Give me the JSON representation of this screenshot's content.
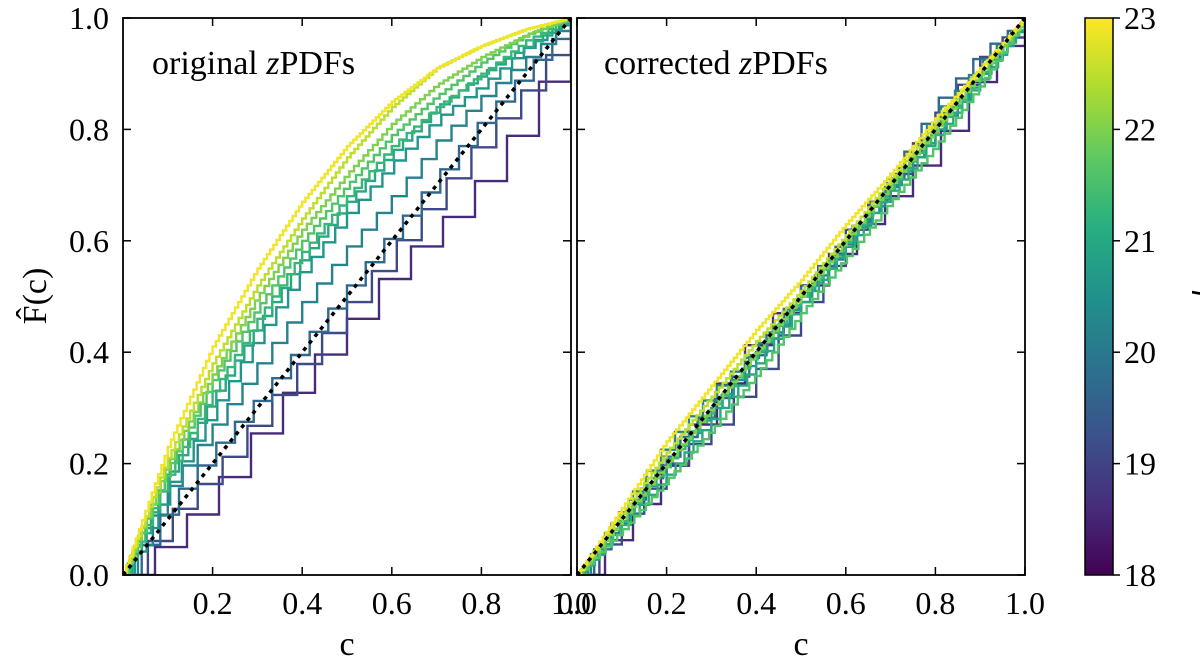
{
  "figure": {
    "ylabel": "F̂(c)",
    "xlabel": "c",
    "colorbar_label": "r"
  },
  "colors": {
    "viridis": [
      "#440154",
      "#472d7b",
      "#3b528b",
      "#2c728e",
      "#21918c",
      "#28ae80",
      "#5ec962",
      "#addc30",
      "#fde725"
    ],
    "reference_line": "#000000"
  },
  "chart_data": [
    {
      "type": "line",
      "panel": "left",
      "annotation_prefix": "original ",
      "annotation_var": "z",
      "annotation_suffix": "PDFs",
      "xlabel": "c",
      "ylabel": "F̂(c)",
      "xlim": [
        0.0,
        1.0
      ],
      "ylim": [
        0.0,
        1.0
      ],
      "xticks": [
        "0.2",
        "0.4",
        "0.6",
        "0.8",
        "1.0"
      ],
      "yticks": [
        "0.0",
        "0.2",
        "0.4",
        "0.6",
        "0.8",
        "1.0"
      ],
      "reference": {
        "name": "y = x",
        "style": "dotted",
        "x": [
          0,
          1
        ],
        "y": [
          0,
          1
        ]
      },
      "series": [
        {
          "r": 18.6,
          "steps": 14,
          "x": [
            0,
            0.1,
            0.2,
            0.3,
            0.4,
            0.5,
            0.6,
            0.7,
            0.8,
            0.9,
            1.0
          ],
          "y": [
            0,
            0.07,
            0.16,
            0.27,
            0.37,
            0.46,
            0.56,
            0.63,
            0.72,
            0.84,
            1.0
          ]
        },
        {
          "r": 19.1,
          "steps": 18,
          "x": [
            0,
            0.1,
            0.2,
            0.3,
            0.4,
            0.5,
            0.6,
            0.7,
            0.8,
            0.9,
            1.0
          ],
          "y": [
            0,
            0.11,
            0.19,
            0.29,
            0.39,
            0.49,
            0.59,
            0.69,
            0.79,
            0.88,
            1.0
          ]
        },
        {
          "r": 19.7,
          "steps": 24,
          "x": [
            0,
            0.1,
            0.2,
            0.3,
            0.4,
            0.5,
            0.6,
            0.7,
            0.8,
            0.9,
            1.0
          ],
          "y": [
            0,
            0.13,
            0.23,
            0.32,
            0.42,
            0.52,
            0.62,
            0.72,
            0.82,
            0.91,
            1.0
          ]
        },
        {
          "r": 20.2,
          "steps": 30,
          "x": [
            0,
            0.1,
            0.2,
            0.3,
            0.4,
            0.5,
            0.6,
            0.7,
            0.8,
            0.9,
            1.0
          ],
          "y": [
            0,
            0.16,
            0.27,
            0.38,
            0.49,
            0.59,
            0.68,
            0.78,
            0.86,
            0.93,
            1.0
          ]
        },
        {
          "r": 20.6,
          "steps": 38,
          "x": [
            0,
            0.1,
            0.2,
            0.3,
            0.4,
            0.5,
            0.6,
            0.7,
            0.8,
            0.9,
            1.0
          ],
          "y": [
            0,
            0.16,
            0.3,
            0.43,
            0.55,
            0.65,
            0.74,
            0.82,
            0.88,
            0.95,
            1.0
          ]
        },
        {
          "r": 21.0,
          "steps": 48,
          "x": [
            0,
            0.1,
            0.2,
            0.3,
            0.4,
            0.5,
            0.6,
            0.7,
            0.8,
            0.9,
            1.0
          ],
          "y": [
            0,
            0.18,
            0.32,
            0.45,
            0.57,
            0.67,
            0.76,
            0.84,
            0.9,
            0.95,
            1.0
          ]
        },
        {
          "r": 21.3,
          "steps": 60,
          "x": [
            0,
            0.1,
            0.2,
            0.3,
            0.4,
            0.5,
            0.6,
            0.7,
            0.8,
            0.9,
            1.0
          ],
          "y": [
            0,
            0.18,
            0.33,
            0.46,
            0.58,
            0.68,
            0.77,
            0.84,
            0.9,
            0.96,
            1.0
          ]
        },
        {
          "r": 21.6,
          "steps": 75,
          "x": [
            0,
            0.1,
            0.2,
            0.3,
            0.4,
            0.5,
            0.6,
            0.7,
            0.8,
            0.9,
            1.0
          ],
          "y": [
            0,
            0.19,
            0.35,
            0.48,
            0.6,
            0.7,
            0.79,
            0.86,
            0.92,
            0.97,
            1.0
          ]
        },
        {
          "r": 22.0,
          "steps": 95,
          "x": [
            0,
            0.1,
            0.2,
            0.3,
            0.4,
            0.5,
            0.6,
            0.7,
            0.8,
            0.9,
            1.0
          ],
          "y": [
            0,
            0.2,
            0.36,
            0.5,
            0.62,
            0.72,
            0.81,
            0.88,
            0.93,
            0.97,
            1.0
          ]
        },
        {
          "r": 22.5,
          "steps": 120,
          "x": [
            0,
            0.1,
            0.2,
            0.3,
            0.4,
            0.5,
            0.6,
            0.7,
            0.8,
            0.9,
            1.0
          ],
          "y": [
            0,
            0.21,
            0.38,
            0.52,
            0.64,
            0.75,
            0.84,
            0.91,
            0.95,
            0.98,
            1.0
          ]
        },
        {
          "r": 22.9,
          "steps": 140,
          "x": [
            0,
            0.1,
            0.2,
            0.3,
            0.4,
            0.5,
            0.6,
            0.7,
            0.8,
            0.9,
            1.0
          ],
          "y": [
            0,
            0.23,
            0.41,
            0.55,
            0.67,
            0.77,
            0.85,
            0.91,
            0.95,
            0.98,
            1.0
          ]
        }
      ]
    },
    {
      "type": "line",
      "panel": "right",
      "annotation_prefix": "corrected ",
      "annotation_var": "z",
      "annotation_suffix": "PDFs",
      "xlabel": "c",
      "xlim": [
        0.0,
        1.0
      ],
      "ylim": [
        0.0,
        1.0
      ],
      "xticks": [
        "0.0",
        "0.2",
        "0.4",
        "0.6",
        "0.8",
        "1.0"
      ],
      "reference": {
        "name": "y = x",
        "style": "dotted",
        "x": [
          0,
          1
        ],
        "y": [
          0,
          1
        ]
      },
      "series": [
        {
          "r": 18.6,
          "steps": 16,
          "x": [
            0,
            0.1,
            0.2,
            0.3,
            0.4,
            0.5,
            0.6,
            0.7,
            0.8,
            0.9,
            1.0
          ],
          "y": [
            0,
            0.1,
            0.21,
            0.33,
            0.44,
            0.52,
            0.61,
            0.69,
            0.78,
            0.92,
            1.0
          ]
        },
        {
          "r": 19.1,
          "steps": 20,
          "x": [
            0,
            0.1,
            0.2,
            0.3,
            0.4,
            0.5,
            0.6,
            0.7,
            0.8,
            0.9,
            1.0
          ],
          "y": [
            0,
            0.11,
            0.2,
            0.27,
            0.37,
            0.49,
            0.62,
            0.72,
            0.83,
            0.93,
            1.0
          ]
        },
        {
          "r": 19.7,
          "steps": 26,
          "x": [
            0,
            0.1,
            0.2,
            0.3,
            0.4,
            0.5,
            0.6,
            0.7,
            0.8,
            0.9,
            1.0
          ],
          "y": [
            0,
            0.12,
            0.22,
            0.31,
            0.41,
            0.52,
            0.61,
            0.72,
            0.85,
            0.94,
            1.0
          ]
        },
        {
          "r": 20.2,
          "steps": 32,
          "x": [
            0,
            0.1,
            0.2,
            0.3,
            0.4,
            0.5,
            0.6,
            0.7,
            0.8,
            0.9,
            1.0
          ],
          "y": [
            0,
            0.12,
            0.24,
            0.33,
            0.41,
            0.51,
            0.6,
            0.71,
            0.83,
            0.92,
            1.0
          ]
        },
        {
          "r": 20.6,
          "steps": 40,
          "x": [
            0,
            0.1,
            0.2,
            0.3,
            0.4,
            0.5,
            0.6,
            0.7,
            0.8,
            0.9,
            1.0
          ],
          "y": [
            0,
            0.11,
            0.21,
            0.3,
            0.4,
            0.5,
            0.6,
            0.7,
            0.8,
            0.9,
            1.0
          ]
        },
        {
          "r": 21.0,
          "steps": 50,
          "x": [
            0,
            0.1,
            0.2,
            0.3,
            0.4,
            0.5,
            0.6,
            0.7,
            0.8,
            0.9,
            1.0
          ],
          "y": [
            0,
            0.09,
            0.18,
            0.28,
            0.38,
            0.49,
            0.59,
            0.69,
            0.79,
            0.89,
            1.0
          ]
        },
        {
          "r": 21.3,
          "steps": 62,
          "x": [
            0,
            0.1,
            0.2,
            0.3,
            0.4,
            0.5,
            0.6,
            0.7,
            0.8,
            0.9,
            1.0
          ],
          "y": [
            0,
            0.1,
            0.2,
            0.3,
            0.4,
            0.5,
            0.6,
            0.7,
            0.8,
            0.9,
            1.0
          ]
        },
        {
          "r": 21.6,
          "steps": 78,
          "x": [
            0,
            0.1,
            0.2,
            0.3,
            0.4,
            0.5,
            0.6,
            0.7,
            0.8,
            0.9,
            1.0
          ],
          "y": [
            0,
            0.08,
            0.17,
            0.26,
            0.36,
            0.47,
            0.57,
            0.67,
            0.77,
            0.88,
            1.0
          ]
        },
        {
          "r": 22.0,
          "steps": 98,
          "x": [
            0,
            0.1,
            0.2,
            0.3,
            0.4,
            0.5,
            0.6,
            0.7,
            0.8,
            0.9,
            1.0
          ],
          "y": [
            0,
            0.1,
            0.2,
            0.3,
            0.4,
            0.5,
            0.6,
            0.7,
            0.8,
            0.9,
            1.0
          ]
        },
        {
          "r": 22.5,
          "steps": 120,
          "x": [
            0,
            0.1,
            0.2,
            0.3,
            0.4,
            0.5,
            0.6,
            0.7,
            0.8,
            0.9,
            1.0
          ],
          "y": [
            0,
            0.11,
            0.22,
            0.32,
            0.42,
            0.51,
            0.61,
            0.71,
            0.81,
            0.91,
            1.0
          ]
        },
        {
          "r": 22.9,
          "steps": 140,
          "x": [
            0,
            0.1,
            0.2,
            0.3,
            0.4,
            0.5,
            0.6,
            0.7,
            0.8,
            0.9,
            1.0
          ],
          "y": [
            0,
            0.12,
            0.24,
            0.34,
            0.44,
            0.53,
            0.63,
            0.72,
            0.82,
            0.91,
            1.0
          ]
        }
      ]
    },
    {
      "type": "colorbar",
      "label": "r",
      "range": [
        18,
        23
      ],
      "ticks": [
        "18",
        "19",
        "20",
        "21",
        "22",
        "23"
      ]
    }
  ]
}
